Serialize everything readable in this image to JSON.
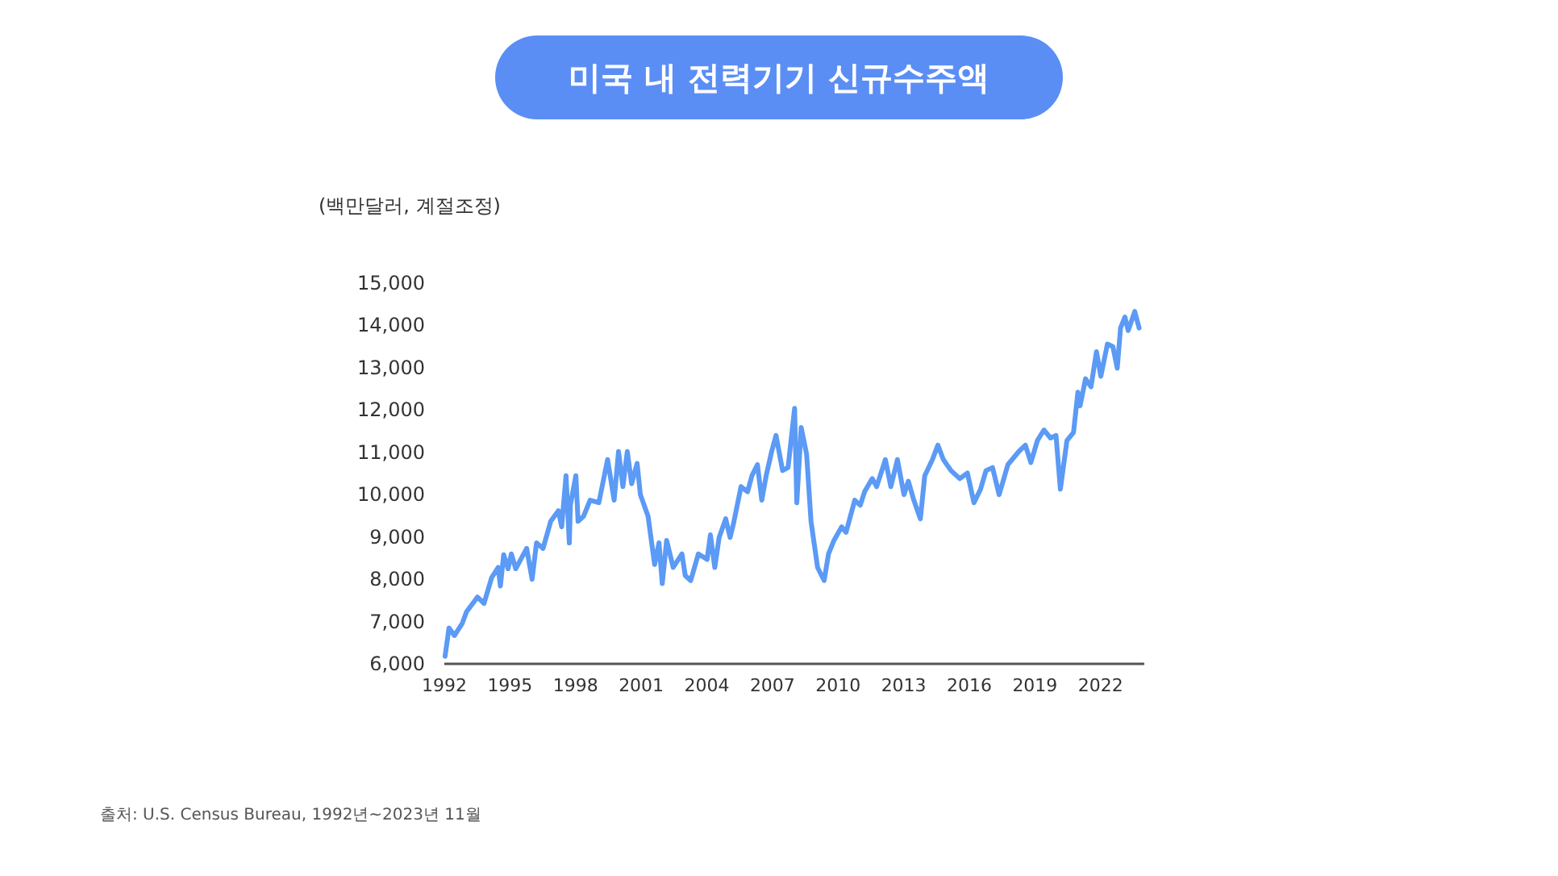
{
  "chart_data": {
    "type": "line",
    "title": "미국 내 전력기기 신규수주액",
    "ylabel": "(백만달러, 계절조정)",
    "annotations": [
      "출처: U.S. Census Bureau, 1992년~2023년 11월"
    ],
    "x": [
      1992.07,
      1992.25,
      1992.5,
      1992.85,
      1993.05,
      1993.55,
      1993.85,
      1994.2,
      1994.5,
      1994.6,
      1994.75,
      1994.95,
      1995.1,
      1995.3,
      1995.8,
      1996.05,
      1996.25,
      1996.55,
      1996.9,
      1997.25,
      1997.4,
      1997.6,
      1997.75,
      1997.8,
      1998.05,
      1998.15,
      1998.4,
      1998.7,
      1999.1,
      1999.5,
      1999.8,
      2000.0,
      2000.2,
      2000.4,
      2000.6,
      2000.85,
      2001.0,
      2001.35,
      2001.65,
      2001.85,
      2002.0,
      2002.2,
      2002.5,
      2002.9,
      2003.05,
      2003.3,
      2003.65,
      2004.05,
      2004.2,
      2004.4,
      2004.6,
      2004.9,
      2005.1,
      2005.25,
      2005.6,
      2005.9,
      2006.1,
      2006.35,
      2006.55,
      2006.75,
      2007.0,
      2007.2,
      2007.5,
      2007.75,
      2008.05,
      2008.15,
      2008.35,
      2008.6,
      2008.8,
      2009.1,
      2009.4,
      2009.6,
      2009.85,
      2010.2,
      2010.4,
      2010.8,
      2011.05,
      2011.25,
      2011.6,
      2011.8,
      2012.2,
      2012.45,
      2012.75,
      2013.05,
      2013.25,
      2013.5,
      2013.8,
      2014.0,
      2014.35,
      2014.6,
      2014.85,
      2015.2,
      2015.6,
      2015.95,
      2016.25,
      2016.55,
      2016.8,
      2017.1,
      2017.4,
      2017.8,
      2018.3,
      2018.6,
      2018.85,
      2019.15,
      2019.45,
      2019.75,
      2020.0,
      2020.2,
      2020.5,
      2020.8,
      2021.0,
      2021.1,
      2021.35,
      2021.6,
      2021.85,
      2022.05,
      2022.35,
      2022.6,
      2022.8,
      2022.95,
      2023.15,
      2023.3,
      2023.6,
      2023.8
    ],
    "series": [
      {
        "color": "#5b9af5",
        "values": [
          6160,
          6830,
          6650,
          6930,
          7210,
          7560,
          7410,
          8020,
          8260,
          7820,
          8560,
          8230,
          8580,
          8230,
          8710,
          7980,
          8840,
          8710,
          9350,
          9600,
          9220,
          10430,
          8840,
          9740,
          10430,
          9350,
          9470,
          9850,
          9790,
          10810,
          9850,
          11000,
          10170,
          11000,
          10240,
          10720,
          9980,
          9470,
          8330,
          8840,
          7880,
          8900,
          8260,
          8580,
          8070,
          7950,
          8580,
          8450,
          9030,
          8260,
          8970,
          9410,
          8970,
          9280,
          10170,
          10050,
          10430,
          10690,
          9850,
          10430,
          11000,
          11380,
          10550,
          10620,
          12020,
          9790,
          11570,
          10930,
          9350,
          8260,
          7950,
          8580,
          8900,
          9220,
          9090,
          9850,
          9730,
          10050,
          10360,
          10170,
          10810,
          10170,
          10810,
          9980,
          10300,
          9850,
          9410,
          10430,
          10810,
          11150,
          10810,
          10550,
          10360,
          10490,
          9790,
          10110,
          10550,
          10620,
          9980,
          10690,
          11000,
          11150,
          10740,
          11260,
          11510,
          11320,
          11380,
          10110,
          11260,
          11450,
          12400,
          12080,
          12720,
          12530,
          13360,
          12780,
          13540,
          13480,
          12970,
          13920,
          14180,
          13860,
          14310,
          13920
        ]
      }
    ],
    "xlim": [
      1992,
      2024
    ],
    "xticks": [
      1992,
      1995,
      1998,
      2001,
      2004,
      2007,
      2010,
      2013,
      2016,
      2019,
      2022
    ],
    "ylim": [
      6000,
      15000
    ],
    "yticks": [
      {
        "value": 6000,
        "label": "6,000"
      },
      {
        "value": 7000,
        "label": "7,000"
      },
      {
        "value": 8000,
        "label": "8,000"
      },
      {
        "value": 9000,
        "label": "9,000"
      },
      {
        "value": 10000,
        "label": "10,000"
      },
      {
        "value": 11000,
        "label": "11,000"
      },
      {
        "value": 12000,
        "label": "12,000"
      },
      {
        "value": 13000,
        "label": "13,000"
      },
      {
        "value": 14000,
        "label": "14,000"
      },
      {
        "value": 15000,
        "label": "15,000"
      }
    ]
  }
}
